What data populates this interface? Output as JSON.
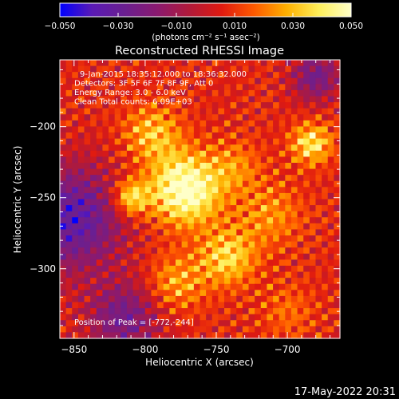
{
  "chart_data": {
    "type": "heatmap",
    "title": "Reconstructed RHESSI Image",
    "xlabel": "Heliocentric X (arcsec)",
    "ylabel": "Heliocentric Y (arcsec)",
    "xlim": [
      -860,
      -663
    ],
    "ylim": [
      -349,
      -153
    ],
    "x_ticks": [
      -850,
      -800,
      -750,
      -700
    ],
    "y_ticks": [
      -200,
      -250,
      -300
    ],
    "colorbar": {
      "range": [
        -0.05,
        0.05
      ],
      "ticks": [
        -0.05,
        -0.03,
        -0.01,
        0.01,
        0.03,
        0.05
      ],
      "tick_labels": [
        "−0.050",
        "−0.030",
        "−0.010",
        "0.010",
        "0.030",
        "0.050"
      ],
      "unit_label": "(photons cm⁻² s⁻¹ asec⁻²)"
    },
    "annotations": [
      "9-Jan-2015 18:35:12.000 to 18:36:32.000",
      "Detectors: 3F 5F 6F 7F 8F 9F, Att 0",
      "Energy Range: 3.0 - 6.0 keV",
      "Clean     Total counts: 6.09E+03"
    ],
    "peak_label": "Position of Peak = [-772,-244]",
    "peak": {
      "x": -772,
      "y": -244
    },
    "sources": [
      {
        "x": -772,
        "y": -244,
        "amp": 0.052,
        "sigma": 17
      },
      {
        "x": -810,
        "y": -250,
        "amp": 0.036,
        "sigma": 9
      },
      {
        "x": -795,
        "y": -205,
        "amp": 0.026,
        "sigma": 14
      },
      {
        "x": -683,
        "y": -212,
        "amp": 0.034,
        "sigma": 10
      },
      {
        "x": -742,
        "y": -292,
        "amp": 0.03,
        "sigma": 14
      },
      {
        "x": -778,
        "y": -310,
        "amp": 0.022,
        "sigma": 14
      },
      {
        "x": -712,
        "y": -262,
        "amp": 0.018,
        "sigma": 16
      },
      {
        "x": -737,
        "y": -228,
        "amp": 0.016,
        "sigma": 13
      },
      {
        "x": -700,
        "y": -330,
        "amp": 0.012,
        "sigma": 14
      }
    ],
    "background_lows": [
      {
        "x": -852,
        "y": -265,
        "amp": -0.04,
        "sigma": 26
      },
      {
        "x": -815,
        "y": -335,
        "amp": -0.03,
        "sigma": 18
      },
      {
        "x": -680,
        "y": -165,
        "amp": -0.03,
        "sigma": 12
      }
    ],
    "colors": {
      "background": "#000000",
      "text": "#ffffff",
      "scale": [
        "#0000ff",
        "#5a1ab4",
        "#6a1f90",
        "#8a1a70",
        "#b01a3a",
        "#e01a10",
        "#ff5a00",
        "#ffb000",
        "#ffef5a",
        "#ffffc8"
      ]
    }
  },
  "footer": {
    "timestamp": "17-May-2022 20:31"
  }
}
